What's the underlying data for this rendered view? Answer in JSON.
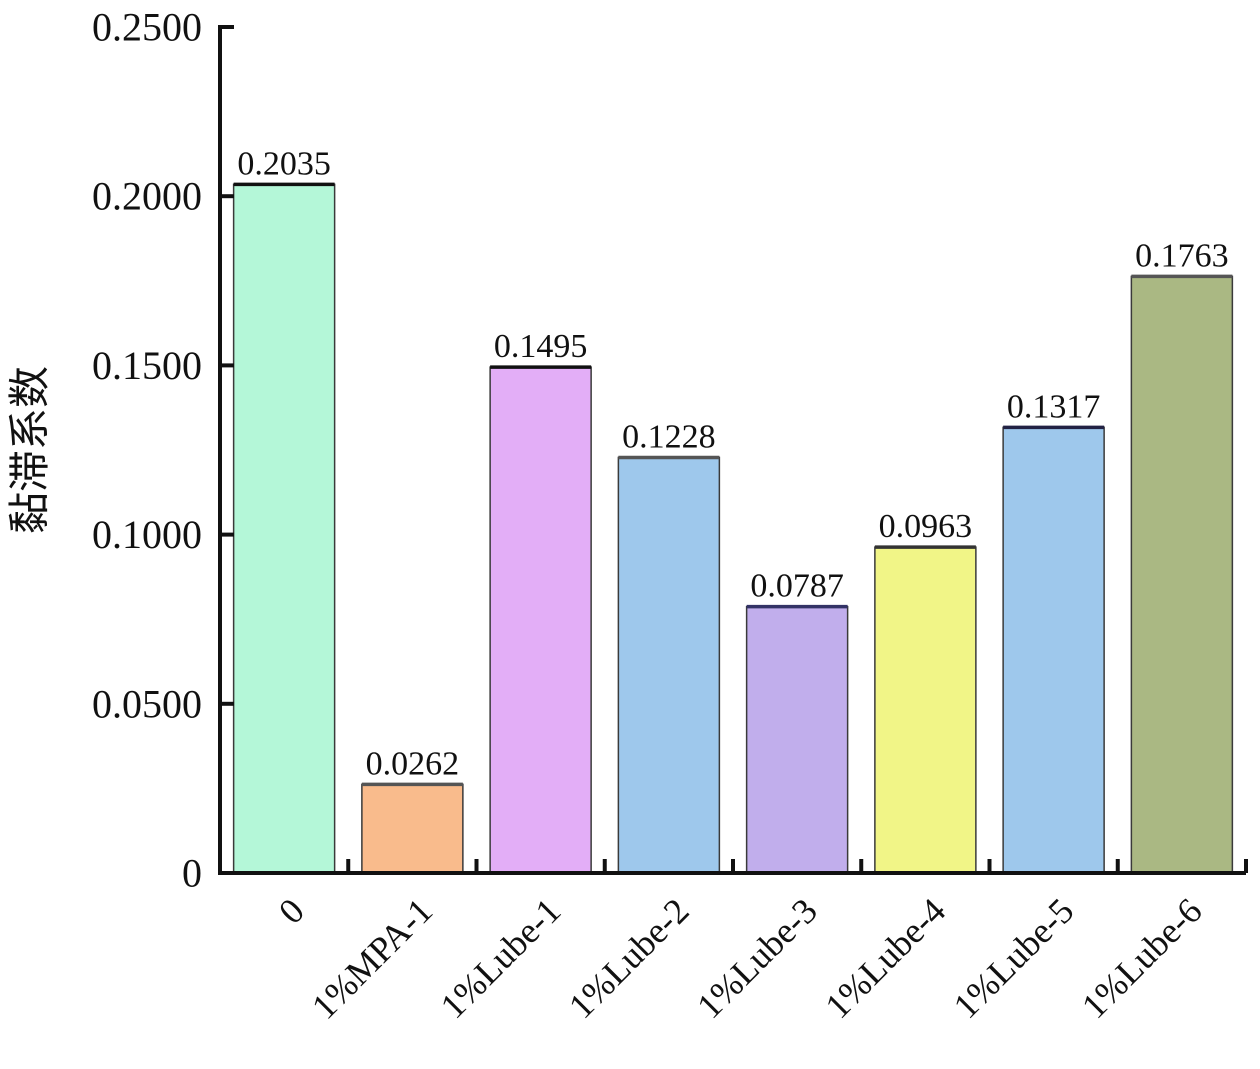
{
  "chart_data": {
    "type": "bar",
    "categories": [
      "0",
      "1%MPA-1",
      "1%Lube-1",
      "1%Lube-2",
      "1%Lube-3",
      "1%Lube-4",
      "1%Lube-5",
      "1%Lube-6"
    ],
    "values": [
      0.2035,
      0.0262,
      0.1495,
      0.1228,
      0.0787,
      0.0963,
      0.1317,
      0.1763
    ],
    "data_labels": [
      "0.2035",
      "0.0262",
      "0.1495",
      "0.1228",
      "0.0787",
      "0.0963",
      "0.1317",
      "0.1763"
    ],
    "colors": [
      "#b4f7d8",
      "#f9bb8c",
      "#e3aef7",
      "#9ec8ec",
      "#c1aeec",
      "#f1f587",
      "#9ec8ec",
      "#aab883"
    ],
    "top_line_colors": [
      "#111111",
      "#555555",
      "#111111",
      "#555555",
      "#333366",
      "#333333",
      "#222244",
      "#555555"
    ],
    "title": "",
    "xlabel": "",
    "ylabel": "黏滞系数",
    "ylim": [
      0,
      0.25
    ],
    "yticks": [
      0,
      0.05,
      0.1,
      0.15,
      0.2,
      0.25
    ],
    "ytick_labels": [
      "0",
      "0.0500",
      "0.1000",
      "0.1500",
      "0.2000",
      "0.2500"
    ],
    "grid": false,
    "legend": "none"
  }
}
